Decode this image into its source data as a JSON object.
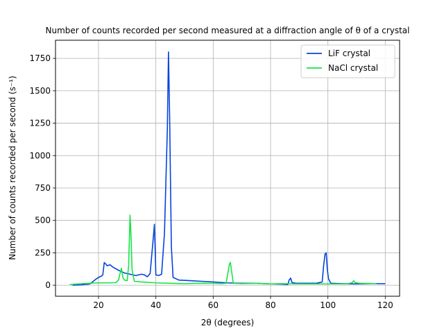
{
  "chart_data": {
    "type": "line",
    "title": "Number of counts recorded per second measured at a diffraction angle of θ of a crystal",
    "xlabel": "2θ (degrees)",
    "ylabel": "Number of counts recorded per second (s⁻¹)",
    "xlim": [
      5,
      125
    ],
    "ylim": [
      -85,
      1890
    ],
    "x_ticks": [
      20,
      40,
      60,
      80,
      100,
      120
    ],
    "y_ticks": [
      0,
      250,
      500,
      750,
      1000,
      1250,
      1500,
      1750
    ],
    "grid": true,
    "legend_position": "top-right",
    "series": [
      {
        "name": "LiF crystal",
        "color": "#0343df",
        "points": [
          [
            11,
            0
          ],
          [
            14,
            3
          ],
          [
            17,
            10
          ],
          [
            19,
            45
          ],
          [
            20,
            60
          ],
          [
            21,
            70
          ],
          [
            21.5,
            80
          ],
          [
            22,
            175
          ],
          [
            22.5,
            165
          ],
          [
            23,
            150
          ],
          [
            24,
            158
          ],
          [
            25,
            140
          ],
          [
            27,
            115
          ],
          [
            29,
            95
          ],
          [
            31,
            85
          ],
          [
            33,
            75
          ],
          [
            35,
            85
          ],
          [
            36,
            80
          ],
          [
            37,
            65
          ],
          [
            38,
            90
          ],
          [
            39,
            340
          ],
          [
            39.5,
            470
          ],
          [
            40,
            80
          ],
          [
            41,
            75
          ],
          [
            42,
            85
          ],
          [
            43,
            400
          ],
          [
            44,
            1200
          ],
          [
            44.4,
            1800
          ],
          [
            44.8,
            1300
          ],
          [
            45.4,
            300
          ],
          [
            46,
            60
          ],
          [
            48,
            40
          ],
          [
            52,
            35
          ],
          [
            56,
            30
          ],
          [
            60,
            25
          ],
          [
            65,
            18
          ],
          [
            70,
            15
          ],
          [
            75,
            15
          ],
          [
            80,
            10
          ],
          [
            84,
            8
          ],
          [
            86,
            5
          ],
          [
            86.5,
            40
          ],
          [
            87,
            55
          ],
          [
            87.5,
            20
          ],
          [
            89,
            15
          ],
          [
            93,
            15
          ],
          [
            96,
            15
          ],
          [
            98,
            25
          ],
          [
            98.5,
            150
          ],
          [
            99,
            240
          ],
          [
            99.4,
            250
          ],
          [
            99.8,
            120
          ],
          [
            100.2,
            50
          ],
          [
            101,
            15
          ],
          [
            105,
            12
          ],
          [
            110,
            10
          ],
          [
            115,
            12
          ],
          [
            120,
            12
          ]
        ]
      },
      {
        "name": "NaCl crystal",
        "color": "#15e544",
        "points": [
          [
            10,
            5
          ],
          [
            14,
            12
          ],
          [
            17,
            15
          ],
          [
            20,
            18
          ],
          [
            24,
            18
          ],
          [
            26,
            20
          ],
          [
            27,
            40
          ],
          [
            27.5,
            90
          ],
          [
            28,
            130
          ],
          [
            28.5,
            60
          ],
          [
            29,
            40
          ],
          [
            30,
            35
          ],
          [
            30.5,
            150
          ],
          [
            31,
            540
          ],
          [
            31.3,
            400
          ],
          [
            31.7,
            120
          ],
          [
            32.5,
            30
          ],
          [
            35,
            25
          ],
          [
            40,
            18
          ],
          [
            45,
            15
          ],
          [
            50,
            12
          ],
          [
            55,
            15
          ],
          [
            60,
            14
          ],
          [
            63,
            12
          ],
          [
            64.5,
            15
          ],
          [
            65,
            80
          ],
          [
            65.7,
            165
          ],
          [
            66,
            175
          ],
          [
            66.4,
            110
          ],
          [
            67,
            15
          ],
          [
            70,
            12
          ],
          [
            75,
            15
          ],
          [
            80,
            10
          ],
          [
            84,
            12
          ],
          [
            90,
            10
          ],
          [
            100,
            10
          ],
          [
            105,
            10
          ],
          [
            107,
            12
          ],
          [
            108.5,
            20
          ],
          [
            109,
            35
          ],
          [
            109.5,
            20
          ],
          [
            111,
            15
          ],
          [
            117,
            12
          ]
        ]
      }
    ]
  }
}
